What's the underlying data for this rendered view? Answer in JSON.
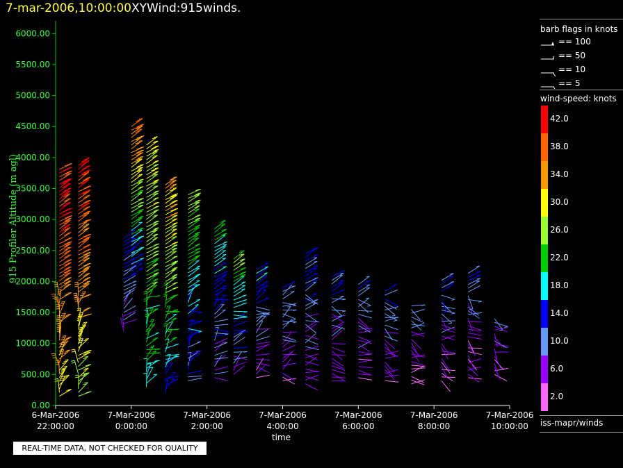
{
  "header": {
    "datetime": "7-mar-2006,10:00:00",
    "title": "XYWind:915winds."
  },
  "chart_data": {
    "type": "scatter",
    "subtype": "wind-barb time-height profile",
    "ylabel": "915 Profiler Altitude (m agl)",
    "xlabel": "time",
    "ylim": [
      0,
      6250
    ],
    "y_ticks": [
      "0.00",
      "500.00",
      "1000.00",
      "1500.00",
      "2000.00",
      "2500.00",
      "3000.00",
      "3500.00",
      "4000.00",
      "4500.00",
      "5000.00",
      "5500.00",
      "6000.00"
    ],
    "x_ticks": [
      {
        "date": "6-Mar-2006",
        "time": "22:00:00"
      },
      {
        "date": "7-Mar-2006",
        "time": "0:00:00"
      },
      {
        "date": "7-Mar-2006",
        "time": "2:00:00"
      },
      {
        "date": "7-Mar-2006",
        "time": "4:00:00"
      },
      {
        "date": "7-Mar-2006",
        "time": "6:00:00"
      },
      {
        "date": "7-Mar-2006",
        "time": "8:00:00"
      },
      {
        "date": "7-Mar-2006",
        "time": "10:00:00"
      }
    ],
    "x_range_hours": [
      22,
      34
    ],
    "profiles": [
      {
        "t": 22.1,
        "tops": 3850,
        "bottom": 150,
        "ws_low": 30,
        "ws_high": 42
      },
      {
        "t": 22.6,
        "tops": 3900,
        "bottom": 150,
        "ws_low": 26,
        "ws_high": 42
      },
      {
        "t": 23.8,
        "tops": 2700,
        "bottom": 1200,
        "ws_low": 6,
        "ws_high": 14
      },
      {
        "t": 24.0,
        "tops": 4500,
        "bottom": 2100,
        "ws_low": 14,
        "ws_high": 36
      },
      {
        "t": 24.4,
        "tops": 4250,
        "bottom": 300,
        "ws_low": 18,
        "ws_high": 30
      },
      {
        "t": 24.9,
        "tops": 3600,
        "bottom": 200,
        "ws_low": 14,
        "ws_high": 34
      },
      {
        "t": 25.5,
        "tops": 3400,
        "bottom": 400,
        "ws_low": 10,
        "ws_high": 26
      },
      {
        "t": 26.2,
        "tops": 2900,
        "bottom": 450,
        "ws_low": 6,
        "ws_high": 22
      },
      {
        "t": 26.7,
        "tops": 2400,
        "bottom": 500,
        "ws_low": 6,
        "ws_high": 26
      },
      {
        "t": 27.3,
        "tops": 2200,
        "bottom": 450,
        "ws_low": 4,
        "ws_high": 16
      },
      {
        "t": 28.0,
        "tops": 1900,
        "bottom": 400,
        "ws_low": 4,
        "ws_high": 12
      },
      {
        "t": 28.6,
        "tops": 2450,
        "bottom": 350,
        "ws_low": 4,
        "ws_high": 14
      },
      {
        "t": 29.3,
        "tops": 2100,
        "bottom": 400,
        "ws_low": 4,
        "ws_high": 12
      },
      {
        "t": 30.0,
        "tops": 2000,
        "bottom": 450,
        "ws_low": 4,
        "ws_high": 12
      },
      {
        "t": 30.7,
        "tops": 1850,
        "bottom": 400,
        "ws_low": 4,
        "ws_high": 12
      },
      {
        "t": 31.4,
        "tops": 1650,
        "bottom": 350,
        "ws_low": 2,
        "ws_high": 10
      },
      {
        "t": 32.2,
        "tops": 2050,
        "bottom": 400,
        "ws_low": 2,
        "ws_high": 14
      },
      {
        "t": 32.9,
        "tops": 2150,
        "bottom": 450,
        "ws_low": 2,
        "ws_high": 12
      },
      {
        "t": 33.6,
        "tops": 1400,
        "bottom": 500,
        "ws_low": 2,
        "ws_high": 10
      }
    ]
  },
  "legend": {
    "barb_title": "barb flags in knots",
    "barb_entries": [
      "== 100",
      "== 50",
      "== 10",
      "== 5"
    ],
    "speed_title": "wind-speed: knots",
    "speed_scale": [
      {
        "label": "42.0",
        "color": "#ff0000"
      },
      {
        "label": "38.0",
        "color": "#ff6600"
      },
      {
        "label": "34.0",
        "color": "#ff9900"
      },
      {
        "label": "30.0",
        "color": "#ffff00"
      },
      {
        "label": "26.0",
        "color": "#99ff33"
      },
      {
        "label": "22.0",
        "color": "#00cc00"
      },
      {
        "label": "18.0",
        "color": "#00ffff"
      },
      {
        "label": "14.0",
        "color": "#0000ff"
      },
      {
        "label": "10.0",
        "color": "#6699ff"
      },
      {
        "label": "6.0",
        "color": "#9900ff"
      },
      {
        "label": "2.0",
        "color": "#ff66ff"
      }
    ],
    "source": "iss-mapr/winds"
  },
  "notice": "REAL-TIME DATA, NOT CHECKED FOR QUALITY",
  "colors": {
    "axis": "#00cc00",
    "tick_text": "#33ff33",
    "background": "#000000"
  }
}
